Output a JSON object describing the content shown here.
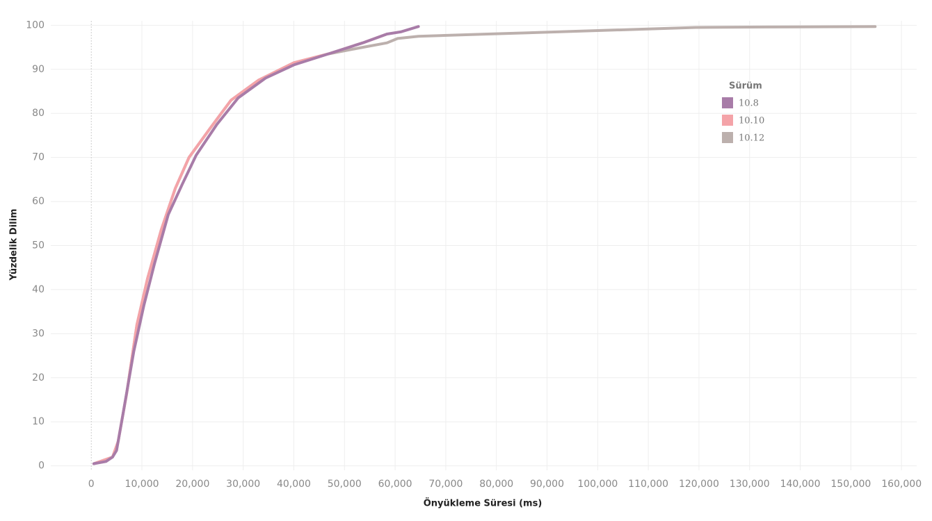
{
  "chart_data": {
    "type": "line",
    "x_label": "Önyükleme Süresi (ms)",
    "y_label": "Yüzdelik Dilim",
    "legend_title": "Sürüm",
    "legend_position": "upper right",
    "grid": true,
    "xlim": [
      -8000,
      163000
    ],
    "ylim": [
      -1,
      101
    ],
    "xticks": [
      0,
      {
        "value": 10000,
        "label": "10,000"
      },
      {
        "value": 20000,
        "label": "20,000"
      },
      {
        "value": 30000,
        "label": "30,000"
      },
      {
        "value": 40000,
        "label": "40,000"
      },
      {
        "value": 50000,
        "label": "50,000"
      },
      {
        "value": 60000,
        "label": "60,000"
      },
      {
        "value": 70000,
        "label": "70,000"
      },
      {
        "value": 80000,
        "label": "80,000"
      },
      {
        "value": 90000,
        "label": "90,000"
      },
      {
        "value": 100000,
        "label": "100,000"
      },
      {
        "value": 110000,
        "label": "110,000"
      },
      {
        "value": 120000,
        "label": "120,000"
      },
      {
        "value": 130000,
        "label": "130,000"
      },
      {
        "value": 140000,
        "label": "140,000"
      },
      {
        "value": 150000,
        "label": "150,000"
      },
      {
        "value": 160000,
        "label": "160,000"
      }
    ],
    "yticks": [
      0,
      10,
      20,
      30,
      40,
      50,
      60,
      70,
      80,
      90,
      100
    ],
    "series": [
      {
        "name": "10.12",
        "color": "#bcb0ad",
        "x": [
          500,
          4200,
          5300,
          7000,
          9000,
          11100,
          13800,
          16600,
          19300,
          23400,
          27600,
          33000,
          40000,
          46800,
          53600,
          58400,
          60500,
          64600,
          78300,
          92000,
          105700,
          119400,
          133100,
          154800
        ],
        "values": [
          0.5,
          2,
          5.5,
          16.5,
          32,
          42.5,
          53.5,
          63,
          70,
          76.5,
          83,
          87.5,
          91.5,
          93.5,
          95,
          96,
          97,
          97.5,
          98,
          98.5,
          99,
          99.5,
          99.6,
          99.7
        ]
      },
      {
        "name": "10.10",
        "color": "#f4a3a8",
        "x": [
          500,
          4200,
          5300,
          7000,
          9000,
          11100,
          13800,
          16600,
          19300,
          23400,
          27600,
          33000,
          40000,
          46800,
          53600,
          58400
        ],
        "values": [
          0.5,
          2,
          5.5,
          16.5,
          32,
          42.5,
          53.5,
          63,
          70,
          76.5,
          83,
          87.5,
          91.5,
          93.5,
          96,
          98
        ]
      },
      {
        "name": "10.8",
        "color": "#a87ca8",
        "x": [
          500,
          2900,
          4200,
          5000,
          6300,
          8400,
          10400,
          12500,
          15200,
          18000,
          20700,
          24800,
          29000,
          34400,
          40000,
          46800,
          53600,
          58400,
          61100,
          64600
        ],
        "values": [
          0.5,
          1,
          2,
          3.5,
          12,
          26,
          36.5,
          46,
          57,
          64,
          70.5,
          77.5,
          83.5,
          88,
          91,
          93.5,
          96,
          98,
          98.5,
          99.7
        ]
      }
    ]
  }
}
